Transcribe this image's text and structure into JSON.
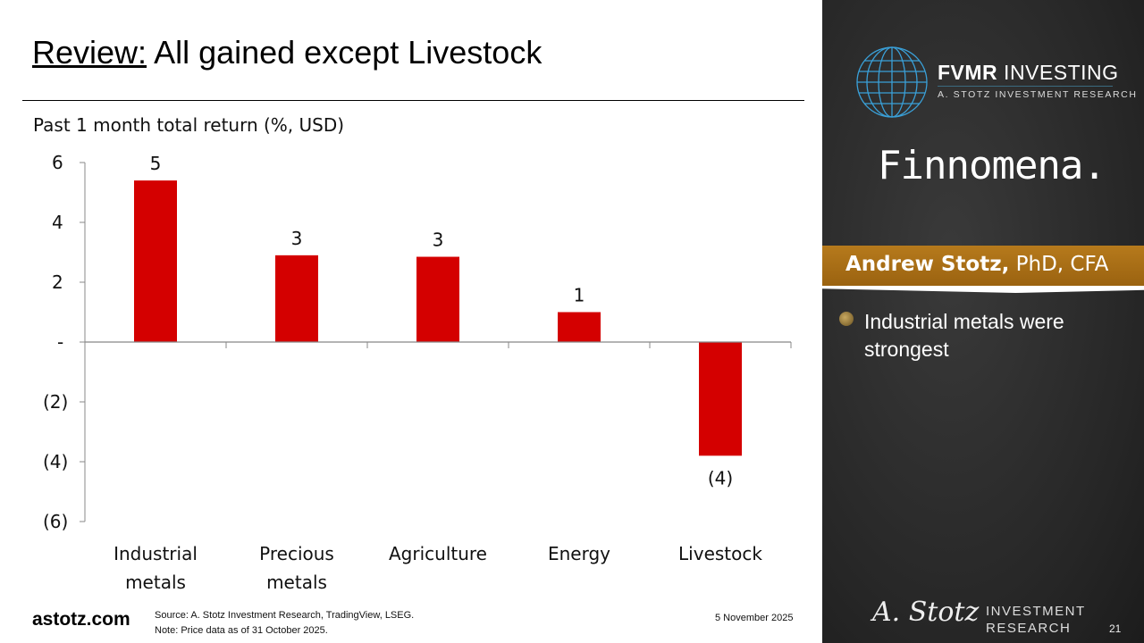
{
  "slide": {
    "title_underlined": "Review:",
    "title_rest": " All gained except Livestock",
    "site": "astotz.com",
    "source_line": "Source: A. Stotz Investment Research, TradingView, LSEG.",
    "note_line": "Note: Price data as of 31 October 2025.",
    "date": "5 November 2025",
    "page_number": "21"
  },
  "panel": {
    "fvmr_bold": "FVMR",
    "fvmr_light": " INVESTING",
    "fvmr_sub": "A. STOTZ INVESTMENT RESEARCH",
    "finnomena": "Finnomena.",
    "presenter_name": "Andrew Stotz,",
    "presenter_creds": " PhD, CFA",
    "bullet": "Industrial metals were strongest",
    "signature": "A. Stotz",
    "ir_line1": "INVESTMENT",
    "ir_line2": "RESEARCH",
    "colors": {
      "banner": "#a86d16",
      "globe": "#3aa0d8"
    }
  },
  "chart_data": {
    "type": "bar",
    "title": "Past 1 month total return (%, USD)",
    "categories": [
      [
        "Industrial",
        "metals"
      ],
      [
        "Precious",
        "metals"
      ],
      [
        "Agriculture"
      ],
      [
        "Energy"
      ],
      [
        "Livestock"
      ]
    ],
    "values": [
      5.4,
      2.9,
      2.85,
      1.0,
      -3.8
    ],
    "data_labels": [
      "5",
      "3",
      "3",
      "1",
      "(4)"
    ],
    "ylim": [
      -6,
      6
    ],
    "yticks": [
      6,
      4,
      2,
      0,
      -2,
      -4,
      -6
    ],
    "ytick_labels": [
      "6",
      "4",
      "2",
      "-",
      "(2)",
      "(4)",
      "(6)"
    ],
    "bar_color": "#d40000",
    "grid": false,
    "legend": "none"
  }
}
